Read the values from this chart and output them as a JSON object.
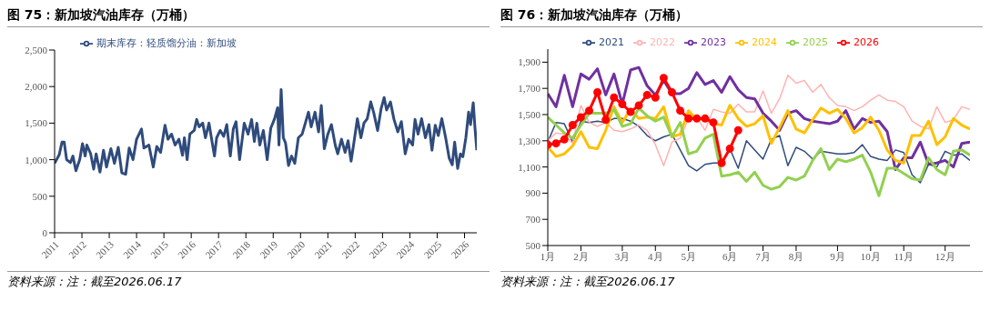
{
  "chart_data": [
    {
      "type": "line",
      "title": "图 75：新加坡汽油库存（万桶）",
      "annotations": [
        "资料来源：注：截至2026.06.17"
      ],
      "legend": "top left",
      "xlim": [
        2011,
        2026.45
      ],
      "xticks": [
        2011,
        2012,
        2013,
        2014,
        2015,
        2016,
        2017,
        2018,
        2019,
        2020,
        2021,
        2022,
        2023,
        2024,
        2025,
        2026
      ],
      "ylim": [
        0,
        2500
      ],
      "yticks": [
        0,
        500,
        {
          "value": 1000,
          "label": "1,000"
        },
        {
          "value": 1500,
          "label": "1,500"
        },
        {
          "value": 2000,
          "label": "2,000"
        },
        {
          "value": 2500,
          "label": "2,500"
        }
      ],
      "x": [
        2011.0,
        2011.17,
        2011.27,
        2011.35,
        2011.44,
        2011.58,
        2011.67,
        2011.78,
        2011.92,
        2012.02,
        2012.12,
        2012.18,
        2012.32,
        2012.43,
        2012.52,
        2012.66,
        2012.79,
        2012.9,
        2013.06,
        2013.19,
        2013.33,
        2013.46,
        2013.6,
        2013.73,
        2013.87,
        2014.0,
        2014.18,
        2014.27,
        2014.45,
        2014.61,
        2014.74,
        2014.88,
        2015.04,
        2015.15,
        2015.28,
        2015.41,
        2015.55,
        2015.68,
        2015.75,
        2015.85,
        2015.95,
        2016.11,
        2016.2,
        2016.29,
        2016.42,
        2016.52,
        2016.65,
        2016.76,
        2016.85,
        2016.93,
        2017.06,
        2017.19,
        2017.3,
        2017.43,
        2017.54,
        2017.64,
        2017.77,
        2017.94,
        2018.08,
        2018.21,
        2018.31,
        2018.4,
        2018.51,
        2018.64,
        2018.78,
        2018.91,
        2019.05,
        2019.16,
        2019.21,
        2019.29,
        2019.37,
        2019.45,
        2019.56,
        2019.67,
        2019.79,
        2019.92,
        2020.06,
        2020.19,
        2020.29,
        2020.39,
        2020.53,
        2020.66,
        2020.76,
        2020.87,
        2021.0,
        2021.13,
        2021.27,
        2021.36,
        2021.5,
        2021.63,
        2021.74,
        2021.85,
        2021.94,
        2022.08,
        2022.21,
        2022.32,
        2022.44,
        2022.57,
        2022.68,
        2022.82,
        2022.95,
        2023.06,
        2023.15,
        2023.29,
        2023.42,
        2023.56,
        2023.69,
        2023.83,
        2023.96,
        2024.1,
        2024.19,
        2024.3,
        2024.43,
        2024.57,
        2024.7,
        2024.81,
        2024.93,
        2025.04,
        2025.17,
        2025.31,
        2025.44,
        2025.55,
        2025.64,
        2025.75,
        2025.85,
        2025.94,
        2026.05,
        2026.15,
        2026.22,
        2026.32,
        2026.38,
        2026.45
      ],
      "series": [
        {
          "name": "期末库存：轻质馏分油：新加坡",
          "color": "#2f4b7c",
          "values": [
            950,
            1070,
            1240,
            1240,
            1000,
            960,
            1050,
            850,
            1000,
            1220,
            1050,
            1200,
            1080,
            870,
            1080,
            830,
            1130,
            900,
            1150,
            950,
            1170,
            820,
            800,
            1160,
            1000,
            1280,
            1420,
            1160,
            1200,
            900,
            1180,
            1100,
            1470,
            1280,
            1350,
            1200,
            1280,
            1060,
            1300,
            1000,
            1350,
            1400,
            1550,
            1450,
            1500,
            1300,
            1500,
            1250,
            1050,
            1300,
            1400,
            1320,
            1480,
            1050,
            1420,
            1520,
            1000,
            1500,
            1350,
            1550,
            1250,
            1500,
            1200,
            1400,
            1000,
            1430,
            1560,
            1710,
            1200,
            1960,
            1300,
            1230,
            920,
            1050,
            950,
            1300,
            1350,
            1520,
            1650,
            1450,
            1650,
            1380,
            1740,
            1150,
            1350,
            1480,
            1200,
            1080,
            1280,
            1100,
            1260,
            980,
            1200,
            1560,
            1300,
            1500,
            1560,
            1790,
            1640,
            1400,
            1700,
            1850,
            1680,
            1790,
            1550,
            1380,
            1520,
            1080,
            1280,
            1200,
            1550,
            1350,
            1560,
            1300,
            1480,
            1130,
            1470,
            1330,
            1560,
            1300,
            1020,
            930,
            1240,
            880,
            1080,
            1040,
            1300,
            1650,
            1480,
            1780,
            1450,
            1130
          ]
        }
      ]
    },
    {
      "type": "line",
      "title": "图 76：新加坡汽油库存（万桶）",
      "annotations": [
        "资料来源：注：截至2026.06.17"
      ],
      "legend": "top",
      "ylim": [
        500,
        2000
      ],
      "yticks": [
        500,
        700,
        900,
        {
          "value": 1100,
          "label": "1,100"
        },
        {
          "value": 1300,
          "label": "1,300"
        },
        {
          "value": 1500,
          "label": "1,500"
        },
        {
          "value": 1700,
          "label": "1,700"
        },
        {
          "value": 1900,
          "label": "1,900"
        }
      ],
      "categories": [
        "1月",
        null,
        null,
        null,
        "2月",
        null,
        null,
        null,
        null,
        "3月",
        null,
        null,
        null,
        "4月",
        null,
        null,
        null,
        "5月",
        null,
        null,
        null,
        null,
        "6月",
        null,
        null,
        null,
        "7月",
        null,
        null,
        null,
        "8月",
        null,
        null,
        null,
        null,
        "9月",
        null,
        null,
        null,
        "10月",
        null,
        null,
        null,
        "11月",
        null,
        null,
        null,
        null,
        "12月",
        null,
        null,
        null
      ],
      "series": [
        {
          "name": "2021",
          "color": "#2f4b7c",
          "values": [
            1290,
            1440,
            1430,
            1290,
            1450,
            1440,
            1450,
            1440,
            1470,
            1470,
            1450,
            1410,
            1340,
            1300,
            1330,
            1350,
            1230,
            1110,
            1070,
            1120,
            1130,
            1130,
            1240,
            1090,
            1300,
            1230,
            1160,
            1310,
            1340,
            1110,
            1250,
            1220,
            1160,
            1220,
            1210,
            1200,
            1200,
            1210,
            1270,
            1180,
            1160,
            1150,
            1230,
            1210,
            1040,
            980,
            1120,
            1100,
            1220,
            1190,
            1200,
            1150
          ]
        },
        {
          "name": "2022",
          "color": "#ffb3b3",
          "values": [
            1300,
            1360,
            1350,
            1280,
            1570,
            1440,
            1410,
            1440,
            1380,
            1370,
            1390,
            1420,
            1380,
            1270,
            1110,
            1290,
            1320,
            1470,
            1480,
            1380,
            1540,
            1520,
            1510,
            1580,
            1520,
            1520,
            1680,
            1510,
            1620,
            1800,
            1740,
            1760,
            1670,
            1730,
            1630,
            1570,
            1560,
            1530,
            1560,
            1610,
            1650,
            1610,
            1600,
            1560,
            1450,
            1410,
            1390,
            1560,
            1440,
            1460,
            1560,
            1540
          ]
        },
        {
          "name": "2023",
          "color": "#7030a0",
          "values": [
            1660,
            1560,
            1800,
            1560,
            1810,
            1770,
            1850,
            1650,
            1810,
            1580,
            1840,
            1860,
            1720,
            1650,
            1760,
            1660,
            1660,
            1700,
            1820,
            1730,
            1760,
            1670,
            1790,
            1690,
            1630,
            1620,
            1510,
            1450,
            1380,
            1510,
            1530,
            1470,
            1450,
            1440,
            1430,
            1450,
            1530,
            1390,
            1470,
            1440,
            1450,
            1370,
            1080,
            1170,
            1170,
            1290,
            1120,
            1130,
            1150,
            1100,
            1280,
            1290
          ]
        },
        {
          "name": "2024",
          "color": "#ffc000",
          "values": [
            1250,
            1180,
            1200,
            1260,
            1370,
            1250,
            1240,
            1380,
            1560,
            1440,
            1540,
            1470,
            1480,
            1470,
            1560,
            1330,
            1350,
            1530,
            1460,
            1470,
            1430,
            1420,
            1570,
            1470,
            1410,
            1430,
            1490,
            1280,
            1400,
            1530,
            1390,
            1360,
            1460,
            1550,
            1510,
            1540,
            1470,
            1360,
            1400,
            1480,
            1380,
            1230,
            1150,
            1130,
            1340,
            1340,
            1450,
            1270,
            1330,
            1470,
            1420,
            1390
          ]
        },
        {
          "name": "2025",
          "color": "#92d050",
          "values": [
            1480,
            1420,
            1360,
            1320,
            1420,
            1510,
            1510,
            1510,
            1540,
            1410,
            1430,
            1550,
            1490,
            1450,
            1480,
            1330,
            1440,
            1200,
            1220,
            1320,
            1350,
            1030,
            1040,
            1060,
            990,
            1060,
            960,
            930,
            950,
            1020,
            1000,
            1030,
            1150,
            1240,
            1080,
            1160,
            1140,
            1160,
            1190,
            1060,
            880,
            1090,
            1090,
            1050,
            1010,
            1000,
            1170,
            1080,
            1040,
            1220,
            1230,
            1190
          ]
        },
        {
          "name": "2026",
          "color": "#ff0000",
          "marker": "circle",
          "values": [
            1270,
            1280,
            1310,
            1420,
            1480,
            1530,
            1670,
            1460,
            1630,
            1580,
            1520,
            1570,
            1650,
            1630,
            1780,
            1670,
            1530,
            1470,
            1470,
            1470,
            1440,
            1130,
            1240,
            1380,
            null,
            null,
            null,
            null,
            null,
            null,
            null,
            null,
            null,
            null,
            null,
            null,
            null,
            null,
            null,
            null,
            null,
            null,
            null,
            null,
            null,
            null,
            null,
            null,
            null,
            null,
            null,
            null
          ]
        }
      ]
    }
  ]
}
